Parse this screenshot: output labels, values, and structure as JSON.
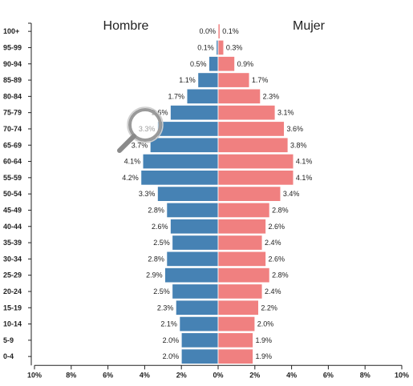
{
  "chart_data": {
    "type": "bar",
    "orientation": "population-pyramid",
    "left_title": "Hombre",
    "right_title": "Mujer",
    "categories": [
      "100+",
      "95-99",
      "90-94",
      "85-89",
      "80-84",
      "75-79",
      "70-74",
      "65-69",
      "60-64",
      "55-59",
      "50-54",
      "45-49",
      "40-44",
      "35-39",
      "30-34",
      "25-29",
      "20-24",
      "15-19",
      "10-14",
      "5-9",
      "0-4"
    ],
    "series": [
      {
        "name": "Hombre",
        "color": "#4682b4",
        "values": [
          0.0,
          0.1,
          0.5,
          1.1,
          1.7,
          2.6,
          3.3,
          3.7,
          4.1,
          4.2,
          3.3,
          2.8,
          2.6,
          2.5,
          2.8,
          2.9,
          2.5,
          2.3,
          2.1,
          2.0,
          2.0
        ],
        "labels": [
          "0.0%",
          "0.1%",
          "0.5%",
          "1.1%",
          "1.7%",
          "2.6%",
          "3.3%",
          "3.7%",
          "4.1%",
          "4.2%",
          "3.3%",
          "2.8%",
          "2.6%",
          "2.5%",
          "2.8%",
          "2.9%",
          "2.5%",
          "2.3%",
          "2.1%",
          "2.0%",
          "2.0%"
        ]
      },
      {
        "name": "Mujer",
        "color": "#f08080",
        "values": [
          0.1,
          0.3,
          0.9,
          1.7,
          2.3,
          3.1,
          3.6,
          3.8,
          4.1,
          4.1,
          3.4,
          2.8,
          2.6,
          2.4,
          2.6,
          2.8,
          2.4,
          2.2,
          2.0,
          1.9,
          1.9
        ],
        "labels": [
          "0.1%",
          "0.3%",
          "0.9%",
          "1.7%",
          "2.3%",
          "3.1%",
          "3.6%",
          "3.8%",
          "4.1%",
          "4.1%",
          "3.4%",
          "2.8%",
          "2.6%",
          "2.4%",
          "2.6%",
          "2.8%",
          "2.4%",
          "2.2%",
          "2.0%",
          "1.9%",
          "1.9%"
        ]
      }
    ],
    "x_ticks": [
      "10%",
      "8%",
      "6%",
      "4%",
      "2%",
      "0%",
      "2%",
      "4%",
      "6%",
      "8%",
      "10%"
    ],
    "xlim": [
      -10,
      10
    ],
    "grid": false,
    "overlay_icon": "magnifier-icon"
  }
}
